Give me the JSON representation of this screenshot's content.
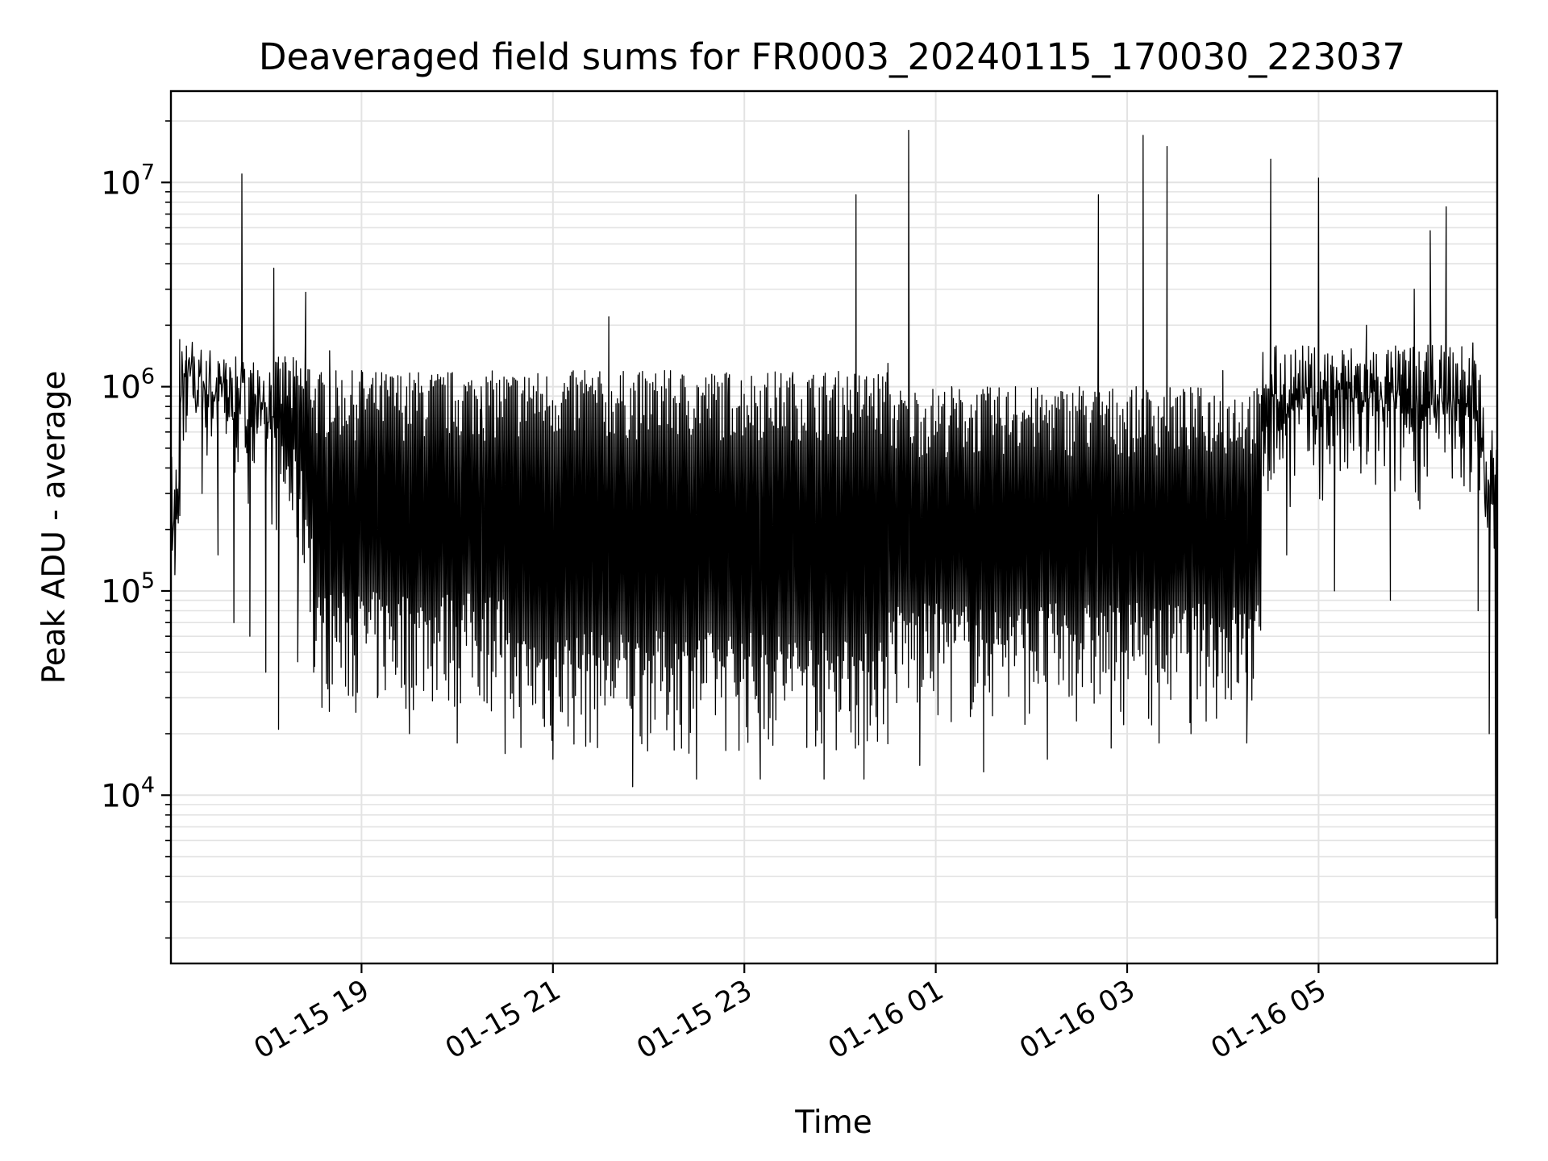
{
  "chart_data": {
    "type": "line",
    "title": "Deaveraged field sums for FR0003_20240115_170030_223037",
    "xlabel": "Time",
    "ylabel": "Peak ADU - average",
    "x_range": [
      "2024-01-15 17:00:30",
      "2024-01-16 06:52:00"
    ],
    "yscale": "log",
    "ylim": [
      1500,
      28000000
    ],
    "grid": "on (major and minor)",
    "x_ticks": [
      {
        "value": "2024-01-15 19:00",
        "label": "01-15 19"
      },
      {
        "value": "2024-01-15 21:00",
        "label": "01-15 21"
      },
      {
        "value": "2024-01-15 23:00",
        "label": "01-15 23"
      },
      {
        "value": "2024-01-16 01:00",
        "label": "01-16 01"
      },
      {
        "value": "2024-01-16 03:00",
        "label": "01-16 03"
      },
      {
        "value": "2024-01-16 05:00",
        "label": "01-16 05"
      }
    ],
    "y_ticks": [
      {
        "value": 10000,
        "base": "10",
        "exp": "4"
      },
      {
        "value": 100000,
        "base": "10",
        "exp": "5"
      },
      {
        "value": 1000000,
        "base": "10",
        "exp": "6"
      },
      {
        "value": 10000000,
        "base": "10",
        "exp": "7"
      }
    ],
    "series": [
      {
        "color": "#000000",
        "points": [
          [
            "2024-01-15 17:00:30",
            250000
          ],
          [
            "2024-01-15 17:03",
            120000
          ],
          [
            "2024-01-15 17:06",
            1700000
          ],
          [
            "2024-01-15 17:10",
            600000
          ],
          [
            "2024-01-15 17:15",
            1400000
          ],
          [
            "2024-01-15 17:20",
            300000
          ],
          [
            "2024-01-15 17:25",
            1500000
          ],
          [
            "2024-01-15 17:30",
            150000
          ],
          [
            "2024-01-15 17:35",
            1300000
          ],
          [
            "2024-01-15 17:40",
            70000
          ],
          [
            "2024-01-15 17:45",
            11000000
          ],
          [
            "2024-01-15 17:50",
            60000
          ],
          [
            "2024-01-15 17:55",
            1200000
          ],
          [
            "2024-01-15 18:00",
            40000
          ],
          [
            "2024-01-15 18:05",
            3800000
          ],
          [
            "2024-01-15 18:08",
            21000
          ],
          [
            "2024-01-15 18:12",
            1400000
          ],
          [
            "2024-01-15 18:20",
            45000
          ],
          [
            "2024-01-15 18:25",
            2900000
          ],
          [
            "2024-01-15 18:30",
            40000
          ],
          [
            "2024-01-15 18:40",
            1500000
          ],
          [
            "2024-01-15 18:50",
            35000
          ],
          [
            "2024-01-15 19:00",
            1200000
          ],
          [
            "2024-01-15 19:10",
            30000
          ],
          [
            "2024-01-15 19:20",
            1100000
          ],
          [
            "2024-01-15 19:30",
            20000
          ],
          [
            "2024-01-15 19:45",
            1000000
          ],
          [
            "2024-01-15 20:00",
            18000
          ],
          [
            "2024-01-15 20:15",
            1000000
          ],
          [
            "2024-01-15 20:30",
            16000
          ],
          [
            "2024-01-15 20:45",
            1100000
          ],
          [
            "2024-01-15 21:00",
            15000
          ],
          [
            "2024-01-15 21:20",
            1200000
          ],
          [
            "2024-01-15 21:35",
            2200000
          ],
          [
            "2024-01-15 21:50",
            11000
          ],
          [
            "2024-01-15 22:10",
            1200000
          ],
          [
            "2024-01-15 22:30",
            12000
          ],
          [
            "2024-01-15 22:50",
            1100000
          ],
          [
            "2024-01-15 23:10",
            12000
          ],
          [
            "2024-01-15 23:30",
            1100000
          ],
          [
            "2024-01-15 23:50",
            12000
          ],
          [
            "2024-01-16 00:10",
            8700000
          ],
          [
            "2024-01-16 00:15",
            12000
          ],
          [
            "2024-01-16 00:30",
            1300000
          ],
          [
            "2024-01-16 00:43",
            18000000
          ],
          [
            "2024-01-16 00:50",
            14000
          ],
          [
            "2024-01-16 01:10",
            1000000
          ],
          [
            "2024-01-16 01:30",
            13000
          ],
          [
            "2024-01-16 01:50",
            1000000
          ],
          [
            "2024-01-16 02:10",
            15000
          ],
          [
            "2024-01-16 02:30",
            1000000
          ],
          [
            "2024-01-16 02:42",
            8700000
          ],
          [
            "2024-01-16 02:50",
            17000
          ],
          [
            "2024-01-16 03:10",
            17000000
          ],
          [
            "2024-01-16 03:20",
            18000
          ],
          [
            "2024-01-16 03:25",
            15000000
          ],
          [
            "2024-01-16 03:40",
            20000
          ],
          [
            "2024-01-16 04:00",
            1200000
          ],
          [
            "2024-01-16 04:15",
            18000
          ],
          [
            "2024-01-16 04:30",
            13000000
          ],
          [
            "2024-01-16 04:40",
            150000
          ],
          [
            "2024-01-16 05:00",
            10500000
          ],
          [
            "2024-01-16 05:10",
            100000
          ],
          [
            "2024-01-16 05:30",
            2000000
          ],
          [
            "2024-01-16 05:45",
            90000
          ],
          [
            "2024-01-16 06:00",
            3000000
          ],
          [
            "2024-01-16 06:10",
            5800000
          ],
          [
            "2024-01-16 06:20",
            7600000
          ],
          [
            "2024-01-16 06:30",
            500000
          ],
          [
            "2024-01-16 06:40",
            80000
          ],
          [
            "2024-01-16 06:47",
            20000
          ],
          [
            "2024-01-16 06:51",
            2500
          ]
        ]
      }
    ]
  }
}
